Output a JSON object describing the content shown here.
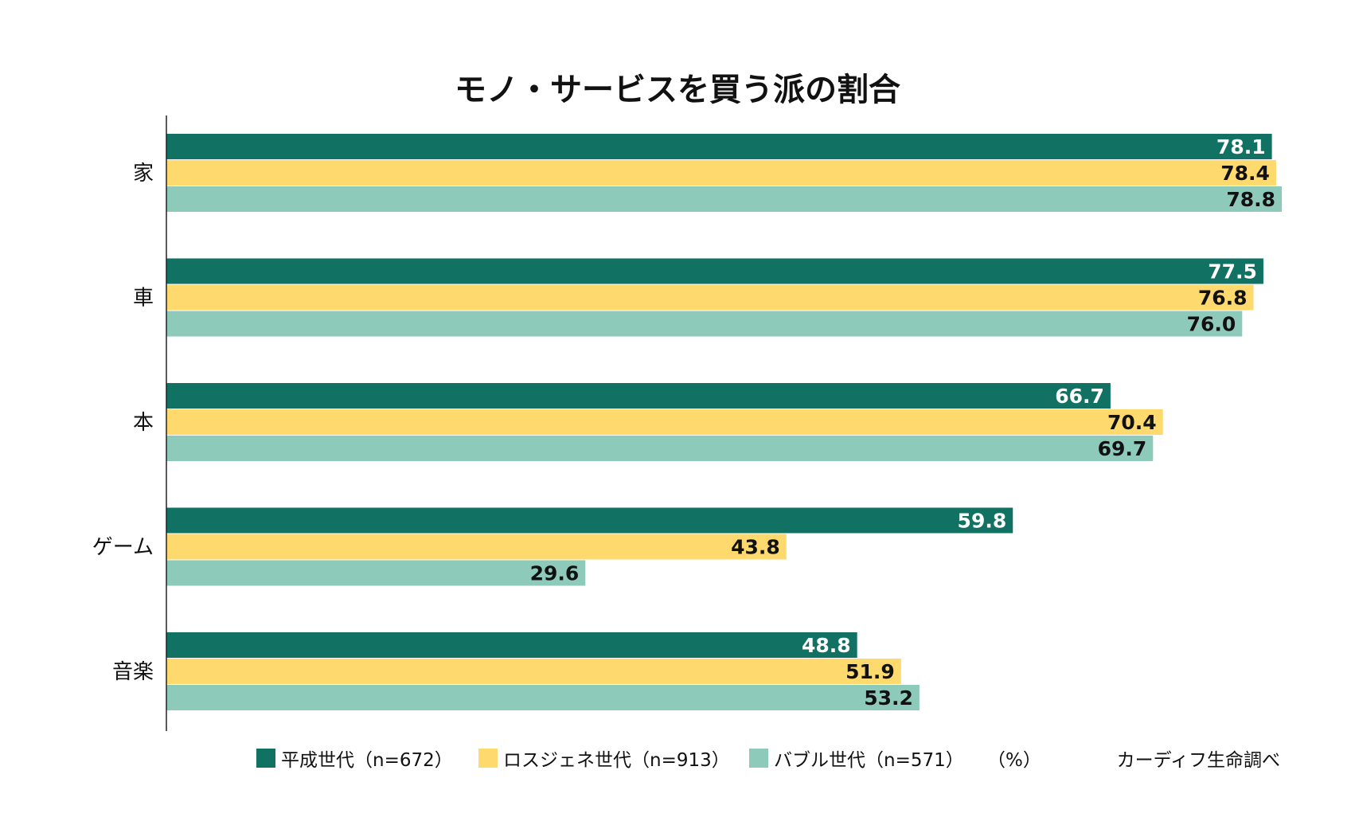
{
  "chart_data": {
    "type": "bar",
    "orientation": "horizontal",
    "title": "モノ・サービスを買う派の割合",
    "categories": [
      "家",
      "車",
      "本",
      "ゲーム",
      "音楽"
    ],
    "series": [
      {
        "name": "平成世代（n=672）",
        "color": "#117264",
        "label_color": "#ffffff",
        "values": [
          78.1,
          77.5,
          66.7,
          59.8,
          48.8
        ]
      },
      {
        "name": "ロスジェネ世代（n=913）",
        "color": "#fdd96e",
        "label_color": "#111111",
        "values": [
          78.4,
          76.8,
          70.4,
          43.8,
          51.9
        ]
      },
      {
        "name": "バブル世代（n=571）",
        "color": "#8ecab9",
        "label_color": "#111111",
        "values": [
          78.8,
          76.0,
          69.7,
          29.6,
          53.2
        ]
      }
    ],
    "value_labels": [
      [
        "78.1",
        "77.5",
        "66.7",
        "59.8",
        "48.8"
      ],
      [
        "78.4",
        "76.8",
        "70.4",
        "43.8",
        "51.9"
      ],
      [
        "78.8",
        "76.0",
        "69.7",
        "29.6",
        "53.2"
      ]
    ],
    "unit": "（%）",
    "source": "カーディフ生命調べ",
    "xlim": [
      0,
      80
    ],
    "grid": false,
    "legend_position": "bottom"
  }
}
